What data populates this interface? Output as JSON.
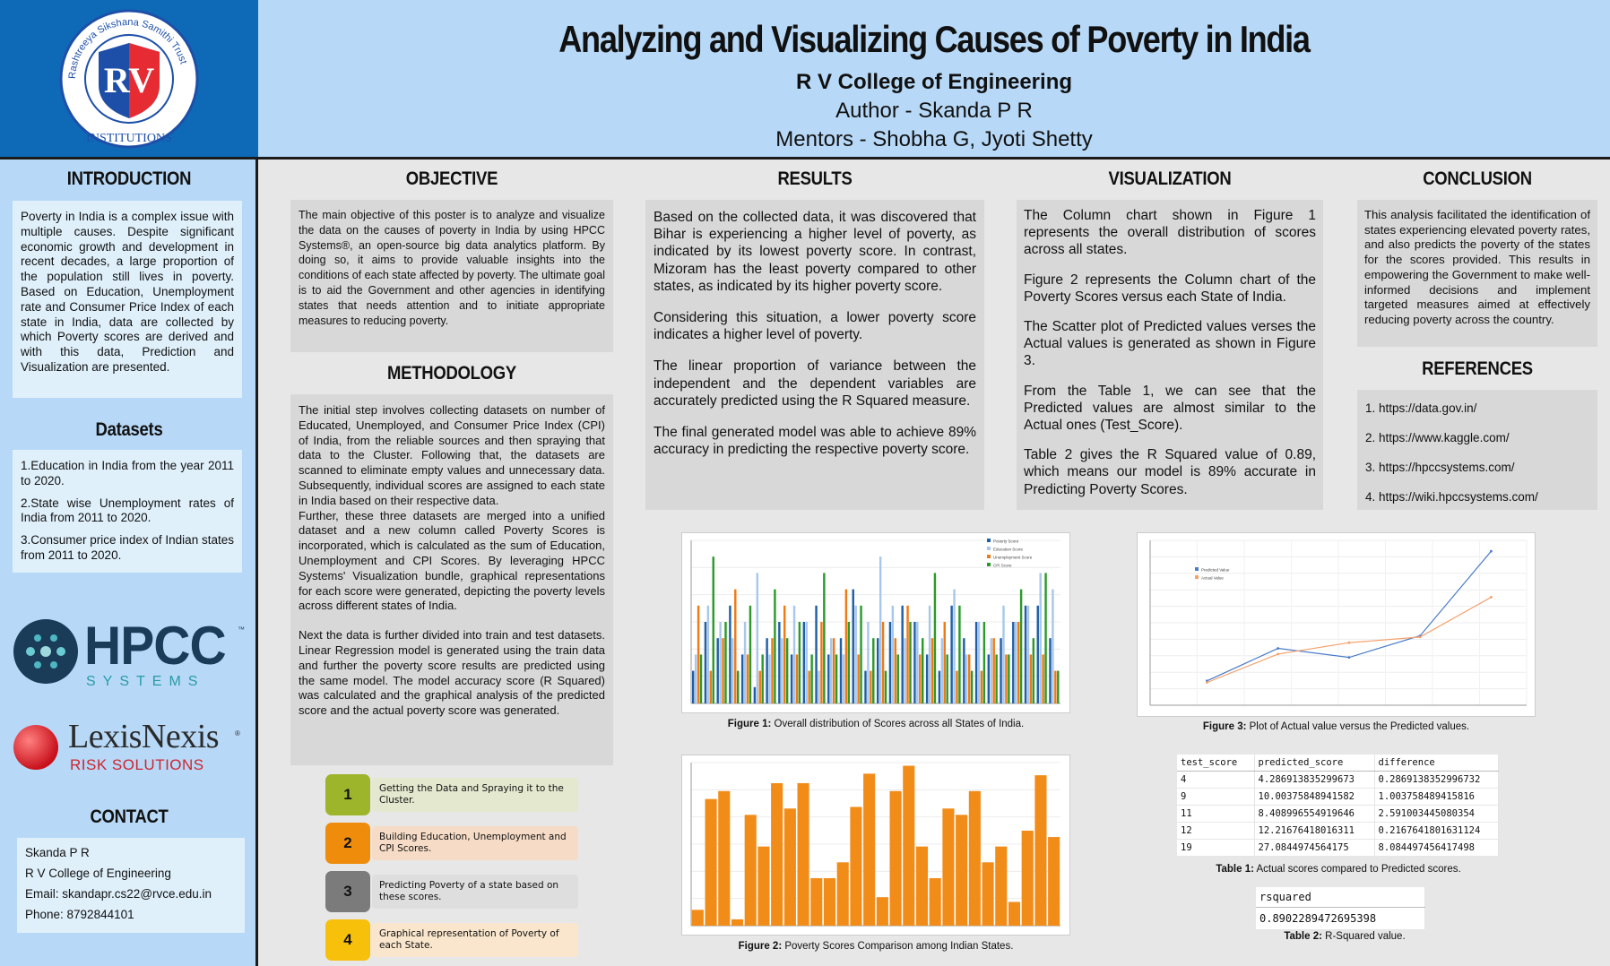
{
  "logo": {
    "ring_text": "Rashtreeya Sikshana Samithi Trust",
    "initials": "RV",
    "bottom_text": "INSTITUTIONS"
  },
  "header": {
    "title": "Analyzing and Visualizing Causes of Poverty in India",
    "college": "R V College of Engineering",
    "author": "Author - Skanda P R",
    "mentors": "Mentors - Shobha G, Jyoti Shetty"
  },
  "introduction": {
    "heading": "INTRODUCTION",
    "text": "Poverty in India is a complex issue with multiple causes. Despite significant economic growth and development in recent decades, a large proportion of the population still lives in poverty. Based on Education, Unemployment rate and Consumer Price Index of each state in India, data are collected by which Poverty scores are derived and with this data, Prediction and Visualization are presented."
  },
  "datasets": {
    "heading": "Datasets",
    "items": [
      "1.Education in India from the year 2011 to 2020.",
      "2.State wise Unemployment rates of India from 2011 to 2020.",
      "3.Consumer price index of Indian states from 2011 to 2020."
    ]
  },
  "hpcc_logo": {
    "name": "HPCC",
    "tm": "™",
    "sub": "SYSTEMS"
  },
  "lexis_logo": {
    "name": "LexisNexis",
    "reg": "®",
    "sub": "RISK SOLUTIONS"
  },
  "contact": {
    "heading": "CONTACT",
    "lines": [
      "Skanda P R",
      "R V College of Engineering",
      "Email: skandapr.cs22@rvce.edu.in",
      "Phone: 8792844101"
    ]
  },
  "objective": {
    "heading": "OBJECTIVE",
    "text": "The main objective of this poster is to analyze and visualize the data on the causes of poverty in India by using HPCC Systems®, an open-source big data analytics platform. By doing so, it aims to provide valuable insights into the conditions of each state affected by poverty. The ultimate goal is to aid the Government and other agencies in identifying states that needs attention and to initiate appropriate measures to reducing poverty."
  },
  "methodology": {
    "heading": "METHODOLOGY",
    "p1": "The initial step involves collecting datasets on number of Educated, Unemployed, and Consumer Price Index (CPI) of India, from the reliable sources and then spraying that data to the Cluster. Following that, the datasets are scanned to eliminate empty values and unnecessary data. Subsequently, individual scores are assigned to each state in India based on their respective data.",
    "p2": "Further, these three datasets are merged into a unified dataset and a new column called Poverty Scores is incorporated, which is calculated as the sum of Education, Unemployment and CPI Scores. By leveraging HPCC Systems' Visualization bundle, graphical representations for each score were generated, depicting the poverty levels across different states of India.",
    "p3": "Next the data is further divided into train and test datasets. Linear Regression model is generated using the train data and further the poverty score results are predicted using the same model. The model accuracy score (R Squared) was calculated and the graphical analysis of the predicted score and the actual poverty score was generated."
  },
  "steps": [
    {
      "num": "1",
      "text": "Getting the Data and Spraying it to the Cluster.",
      "color": "#9db52a",
      "bg": "#e4e8cf"
    },
    {
      "num": "2",
      "text": "Building Education, Unemployment and CPI Scores.",
      "color": "#f08c0c",
      "bg": "#f6dcc6"
    },
    {
      "num": "3",
      "text": "Predicting Poverty of a state based on these scores.",
      "color": "#7b7b7b",
      "bg": "#dedede"
    },
    {
      "num": "4",
      "text": "Graphical representation of Poverty of each State.",
      "color": "#f7c00a",
      "bg": "#f9e6cc"
    }
  ],
  "results": {
    "heading": "RESULTS",
    "p1": "Based on the collected data, it was discovered that Bihar is experiencing a higher level of poverty, as indicated by its lowest poverty score. In contrast, Mizoram has the least poverty compared to other states, as indicated by its higher poverty score.",
    "p2": "Considering this situation, a lower poverty score indicates a higher level of poverty.",
    "p3": "The linear proportion of variance between the independent and the dependent variables are accurately predicted using the R Squared measure.",
    "p4": "The final generated model was able to achieve 89% accuracy in predicting the respective poverty score."
  },
  "visualization": {
    "heading": "VISUALIZATION",
    "p1": "The Column chart shown in Figure 1 represents the overall distribution of scores across all states.",
    "p2": "Figure 2 represents the Column chart of the Poverty Scores versus each State of India.",
    "p3": "The Scatter plot of Predicted values verses the Actual values is generated as shown in Figure 3.",
    "p4": "From the Table 1, we can see that the Predicted values are almost similar to the Actual ones (Test_Score).",
    "p5": "Table 2 gives the R Squared value of 0.89, which means our model is 89% accurate in Predicting Poverty Scores."
  },
  "conclusion": {
    "heading": "CONCLUSION",
    "text": "This analysis facilitated the identification of states experiencing elevated poverty rates, and also predicts the poverty of the states for the scores provided. This results in empowering the Government to make well-informed decisions and implement targeted measures aimed at effectively reducing poverty across the country."
  },
  "references": {
    "heading": "REFERENCES",
    "items": [
      "1. https://data.gov.in/",
      "2. https://www.kaggle.com/",
      "3. https://hpccsystems.com/",
      "4. https://wiki.hpccsystems.com/"
    ]
  },
  "figures": {
    "fig1": {
      "label": "Figure 1:",
      "text": " Overall distribution of Scores across all States of India."
    },
    "fig2": {
      "label": "Figure 2:",
      "text": " Poverty Scores Comparison among Indian States."
    },
    "fig3": {
      "label": "Figure 3:",
      "text": " Plot of Actual value versus the Predicted values."
    },
    "tab1": {
      "label": "Table 1:",
      "text": " Actual scores compared to Predicted scores."
    },
    "tab2": {
      "label": "Table 2:",
      "text": " R-Squared value."
    }
  },
  "table1": {
    "headers": [
      "test_score",
      "predicted_score",
      "difference"
    ],
    "rows": [
      [
        "4",
        "4.286913835299673",
        "0.2869138352996732"
      ],
      [
        "9",
        "10.00375848941582",
        "1.003758489415816"
      ],
      [
        "11",
        "8.408996554919646",
        "2.591003445080354"
      ],
      [
        "12",
        "12.21676418016311",
        "0.2167641801631124"
      ],
      [
        "19",
        "27.0844974564175",
        "8.084497456417498"
      ]
    ]
  },
  "table2": {
    "header": "rsquared",
    "value": "0.8902289472695398"
  },
  "chart_data": [
    {
      "type": "bar",
      "id": "figure-1",
      "series": [
        {
          "name": "Poverty Score",
          "color": "#1f5fa8",
          "values": [
            2,
            5,
            4,
            6,
            3,
            1,
            4,
            5,
            3,
            5,
            6,
            3,
            4,
            7,
            2,
            4,
            5,
            6,
            5,
            3,
            2,
            6,
            4,
            5,
            3,
            4,
            5,
            6,
            6,
            4
          ]
        },
        {
          "name": "Education Score",
          "color": "#a9c7ec",
          "values": [
            3,
            6,
            5,
            4,
            5,
            8,
            3,
            4,
            6,
            5,
            2,
            4,
            3,
            6,
            5,
            9,
            6,
            4,
            5,
            6,
            4,
            7,
            3,
            5,
            4,
            6,
            5,
            6,
            8,
            7
          ]
        },
        {
          "name": "Unemployment Score",
          "color": "#f07a14",
          "values": [
            6,
            2,
            4,
            7,
            3,
            2,
            4,
            6,
            3,
            2,
            5,
            4,
            7,
            3,
            2,
            5,
            4,
            6,
            3,
            4,
            5,
            2,
            3,
            2,
            4,
            3,
            5,
            3,
            3,
            2
          ]
        },
        {
          "name": "CPI Score",
          "color": "#2b9a2b",
          "values": [
            3,
            9,
            5,
            2,
            6,
            3,
            7,
            4,
            5,
            3,
            8,
            3,
            5,
            6,
            4,
            2,
            3,
            5,
            4,
            8,
            3,
            6,
            2,
            5,
            3,
            3,
            7,
            4,
            8,
            2
          ]
        }
      ]
    },
    {
      "type": "bar",
      "id": "figure-2",
      "series": [
        {
          "name": "Poverty Score",
          "color": "#f28c19",
          "values": [
            1,
            8,
            8.5,
            0.4,
            7,
            5,
            9,
            7.4,
            9,
            3,
            3,
            4,
            7.5,
            9.6,
            1.8,
            8.5,
            10.1,
            5,
            3,
            7.4,
            7,
            8.5,
            4,
            5,
            1.5,
            6,
            9.5,
            5.6
          ]
        }
      ]
    },
    {
      "type": "line",
      "id": "figure-3",
      "x": [
        1,
        2,
        3,
        4,
        5
      ],
      "series": [
        {
          "name": "Predicted Value",
          "color": "#4a7cc9",
          "values": [
            4.29,
            10.0,
            8.41,
            12.22,
            27.08
          ]
        },
        {
          "name": "Actual Value",
          "color": "#f5a06a",
          "values": [
            4,
            9,
            11,
            12,
            19
          ]
        }
      ]
    }
  ]
}
